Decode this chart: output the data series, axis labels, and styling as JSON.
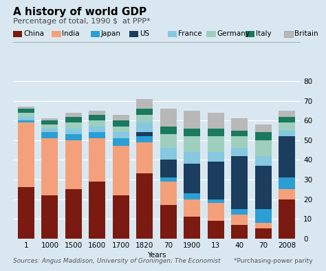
{
  "years": [
    "1",
    "1000",
    "1500",
    "1600",
    "1700",
    "1820",
    "70",
    "1900",
    "13",
    "40",
    "70",
    "2008"
  ],
  "title": "A history of world GDP",
  "subtitle": "Percentage of total, 1990 $  at PPP*",
  "xlabel": "Years",
  "footnote_left": "Sources: Angus Maddison, University of Groningen; The Economist",
  "footnote_right": "*Purchasing-power parity",
  "ylim": [
    0,
    80
  ],
  "yticks": [
    0,
    10,
    20,
    30,
    40,
    50,
    60,
    70,
    80
  ],
  "series": {
    "China": [
      26,
      22,
      25,
      29,
      22,
      33,
      17,
      11,
      9,
      7,
      5,
      20
    ],
    "India": [
      33,
      29,
      25,
      22,
      25,
      16,
      12,
      9,
      9,
      5,
      3,
      5
    ],
    "Japan": [
      1,
      3,
      3,
      3,
      4,
      3,
      2,
      3,
      2,
      3,
      7,
      6
    ],
    "US": [
      0,
      0,
      0,
      0,
      0,
      2,
      9,
      15,
      19,
      27,
      22,
      21
    ],
    "France": [
      2,
      2,
      3,
      3,
      3,
      5,
      6,
      6,
      5,
      4,
      5,
      3
    ],
    "Germany": [
      2,
      2,
      3,
      3,
      3,
      4,
      7,
      8,
      8,
      6,
      8,
      4
    ],
    "Italy": [
      2,
      2,
      3,
      3,
      3,
      3,
      4,
      4,
      4,
      3,
      4,
      3
    ],
    "Britain": [
      1,
      1,
      2,
      2,
      3,
      5,
      9,
      9,
      8,
      6,
      4,
      3
    ]
  },
  "colors": {
    "China": "#7b1a10",
    "India": "#f4a07a",
    "Japan": "#2b9fd4",
    "US": "#1b3d5e",
    "France": "#85c8e0",
    "Germany": "#9ecfbe",
    "Italy": "#1a7a5e",
    "Britain": "#b8b8b8"
  },
  "bg_color": "#d9e8f0",
  "fig_bg": "#d9e8f0",
  "title_fontsize": 11,
  "subtitle_fontsize": 8,
  "legend_fontsize": 7.5,
  "tick_fontsize": 7.5,
  "footnote_fontsize": 6.5
}
